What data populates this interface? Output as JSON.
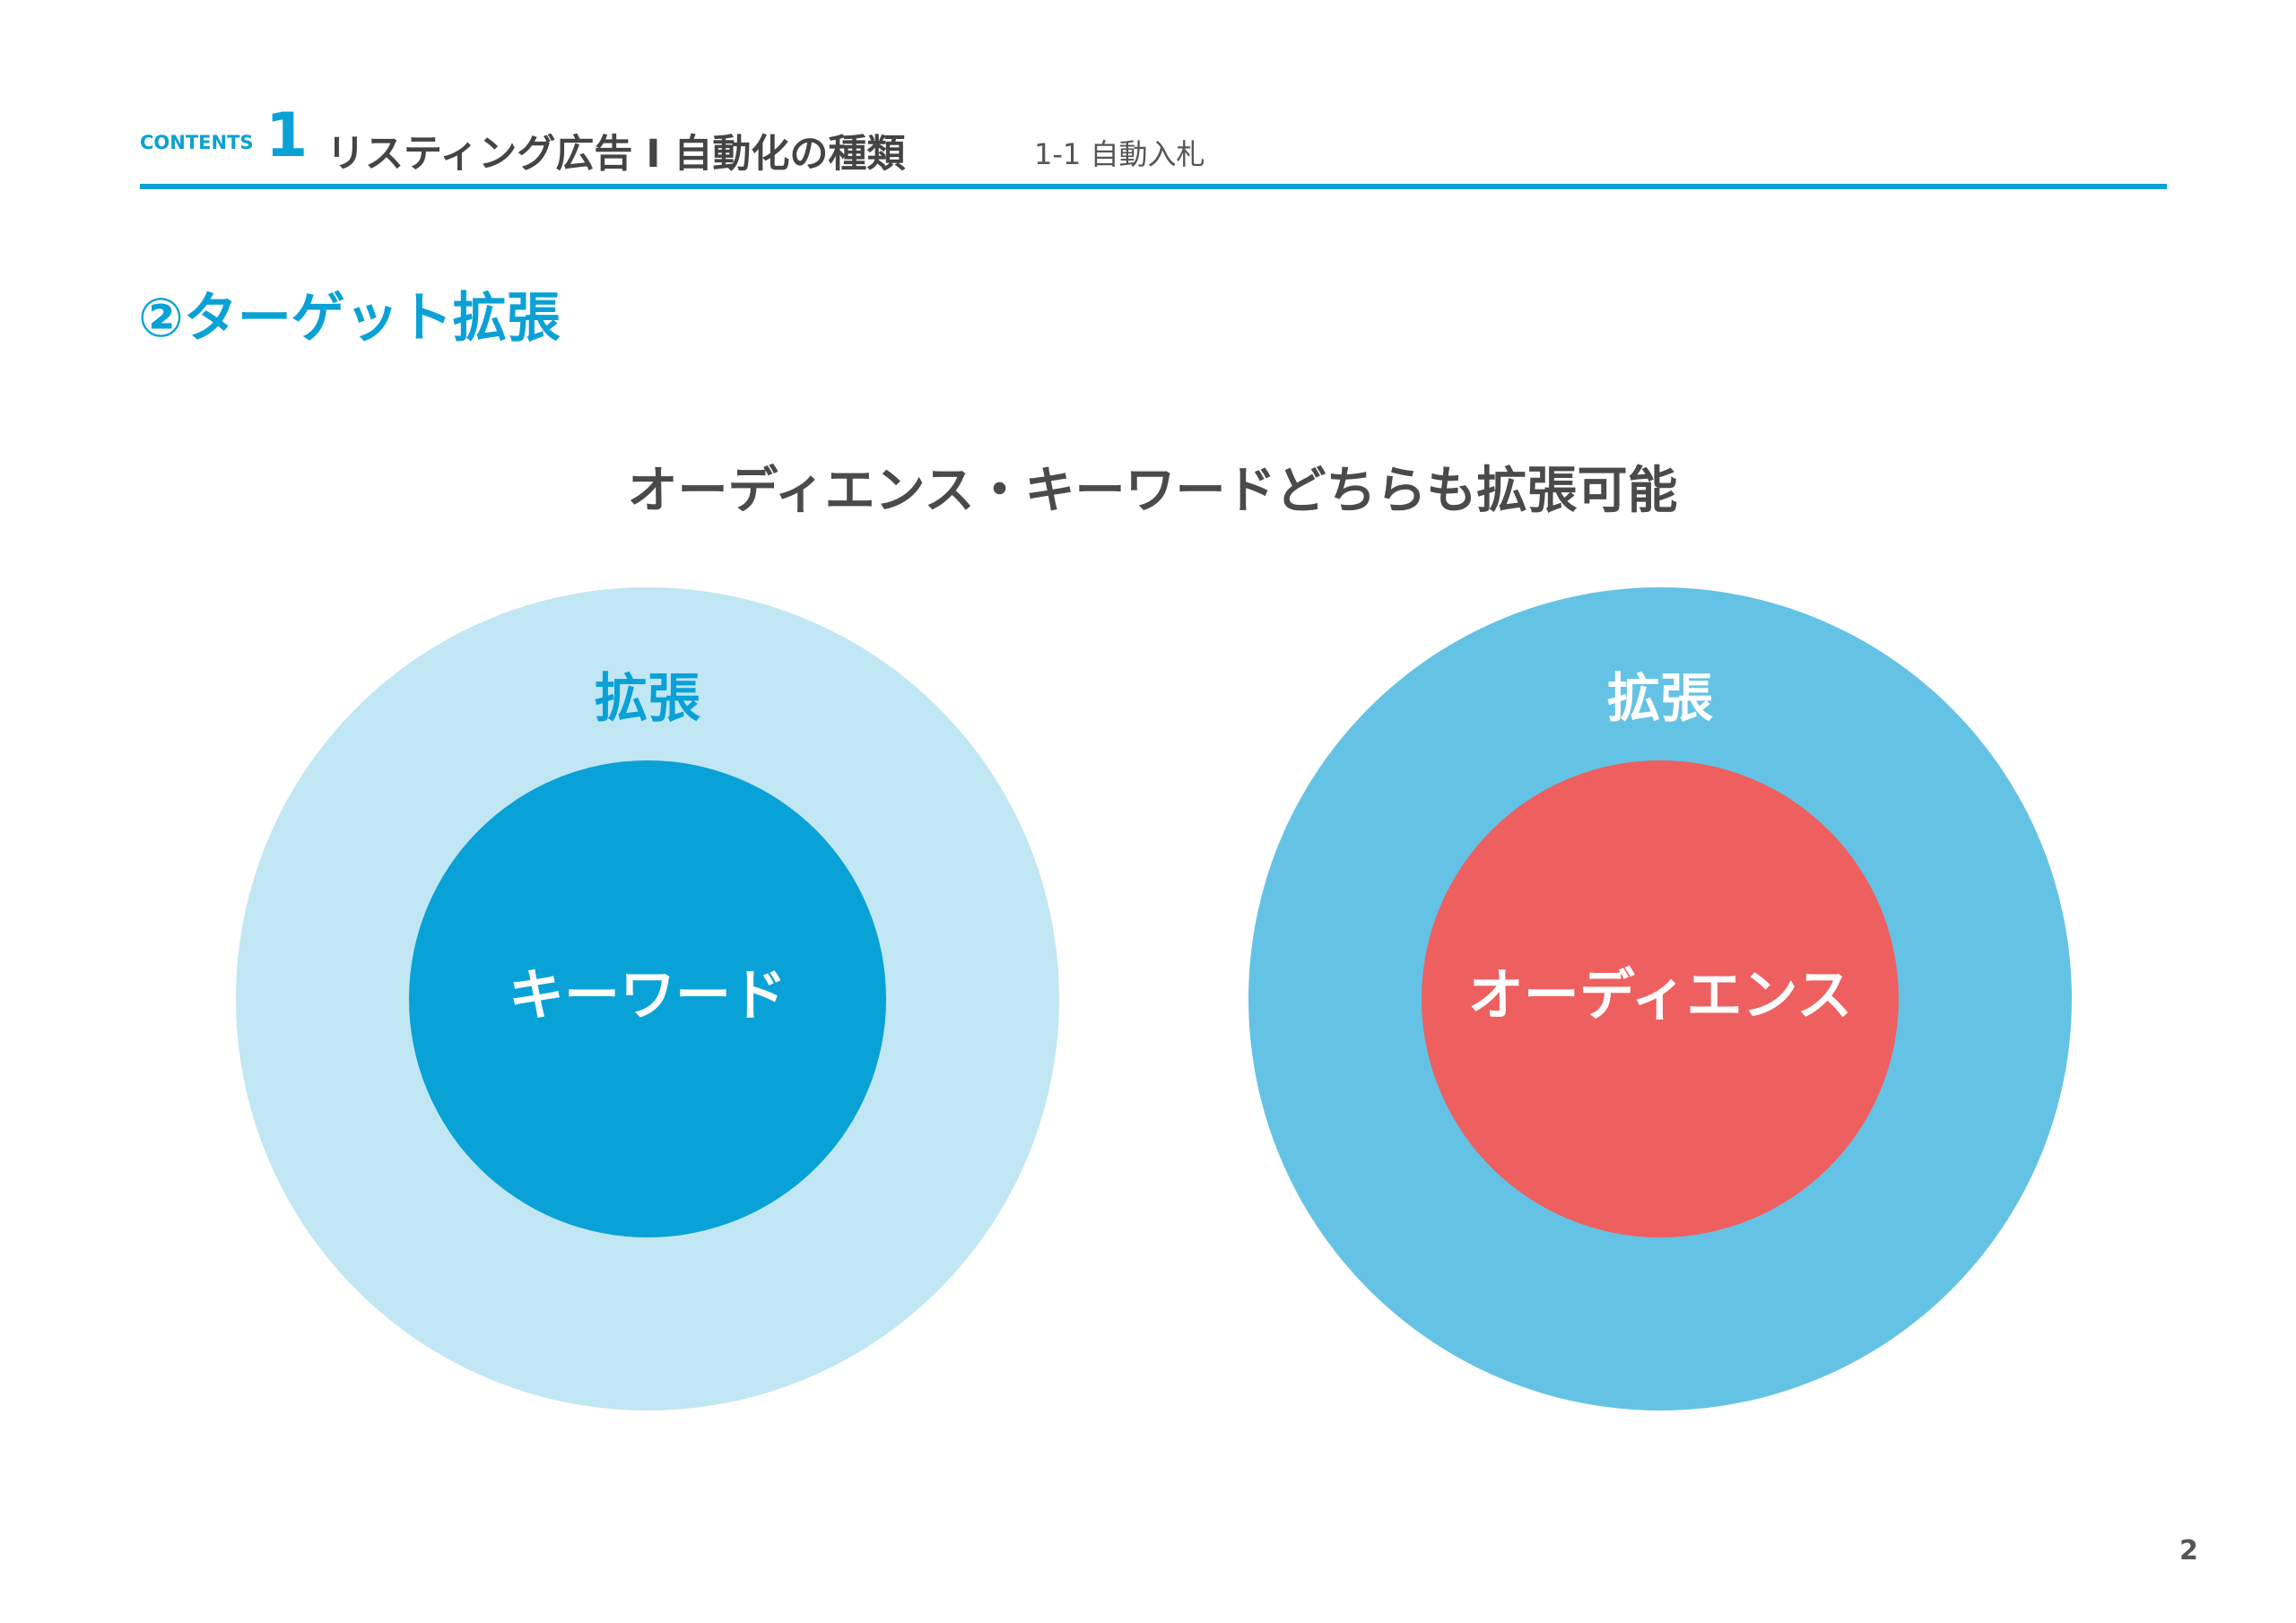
{
  "header": {
    "contents_label": "CONTENTS",
    "number": "1",
    "title": "リスティング広告 I 自動化の種類",
    "subtitle": "1-1 自動入札"
  },
  "section_title": "②ターゲット拡張",
  "heading": "オーディエンス・キーワードどちらも拡張可能",
  "diagrams": [
    {
      "outer_label": "拡張",
      "inner_label": "キーワード"
    },
    {
      "outer_label": "拡張",
      "inner_label": "オーディエンス"
    }
  ],
  "page_number": "2"
}
